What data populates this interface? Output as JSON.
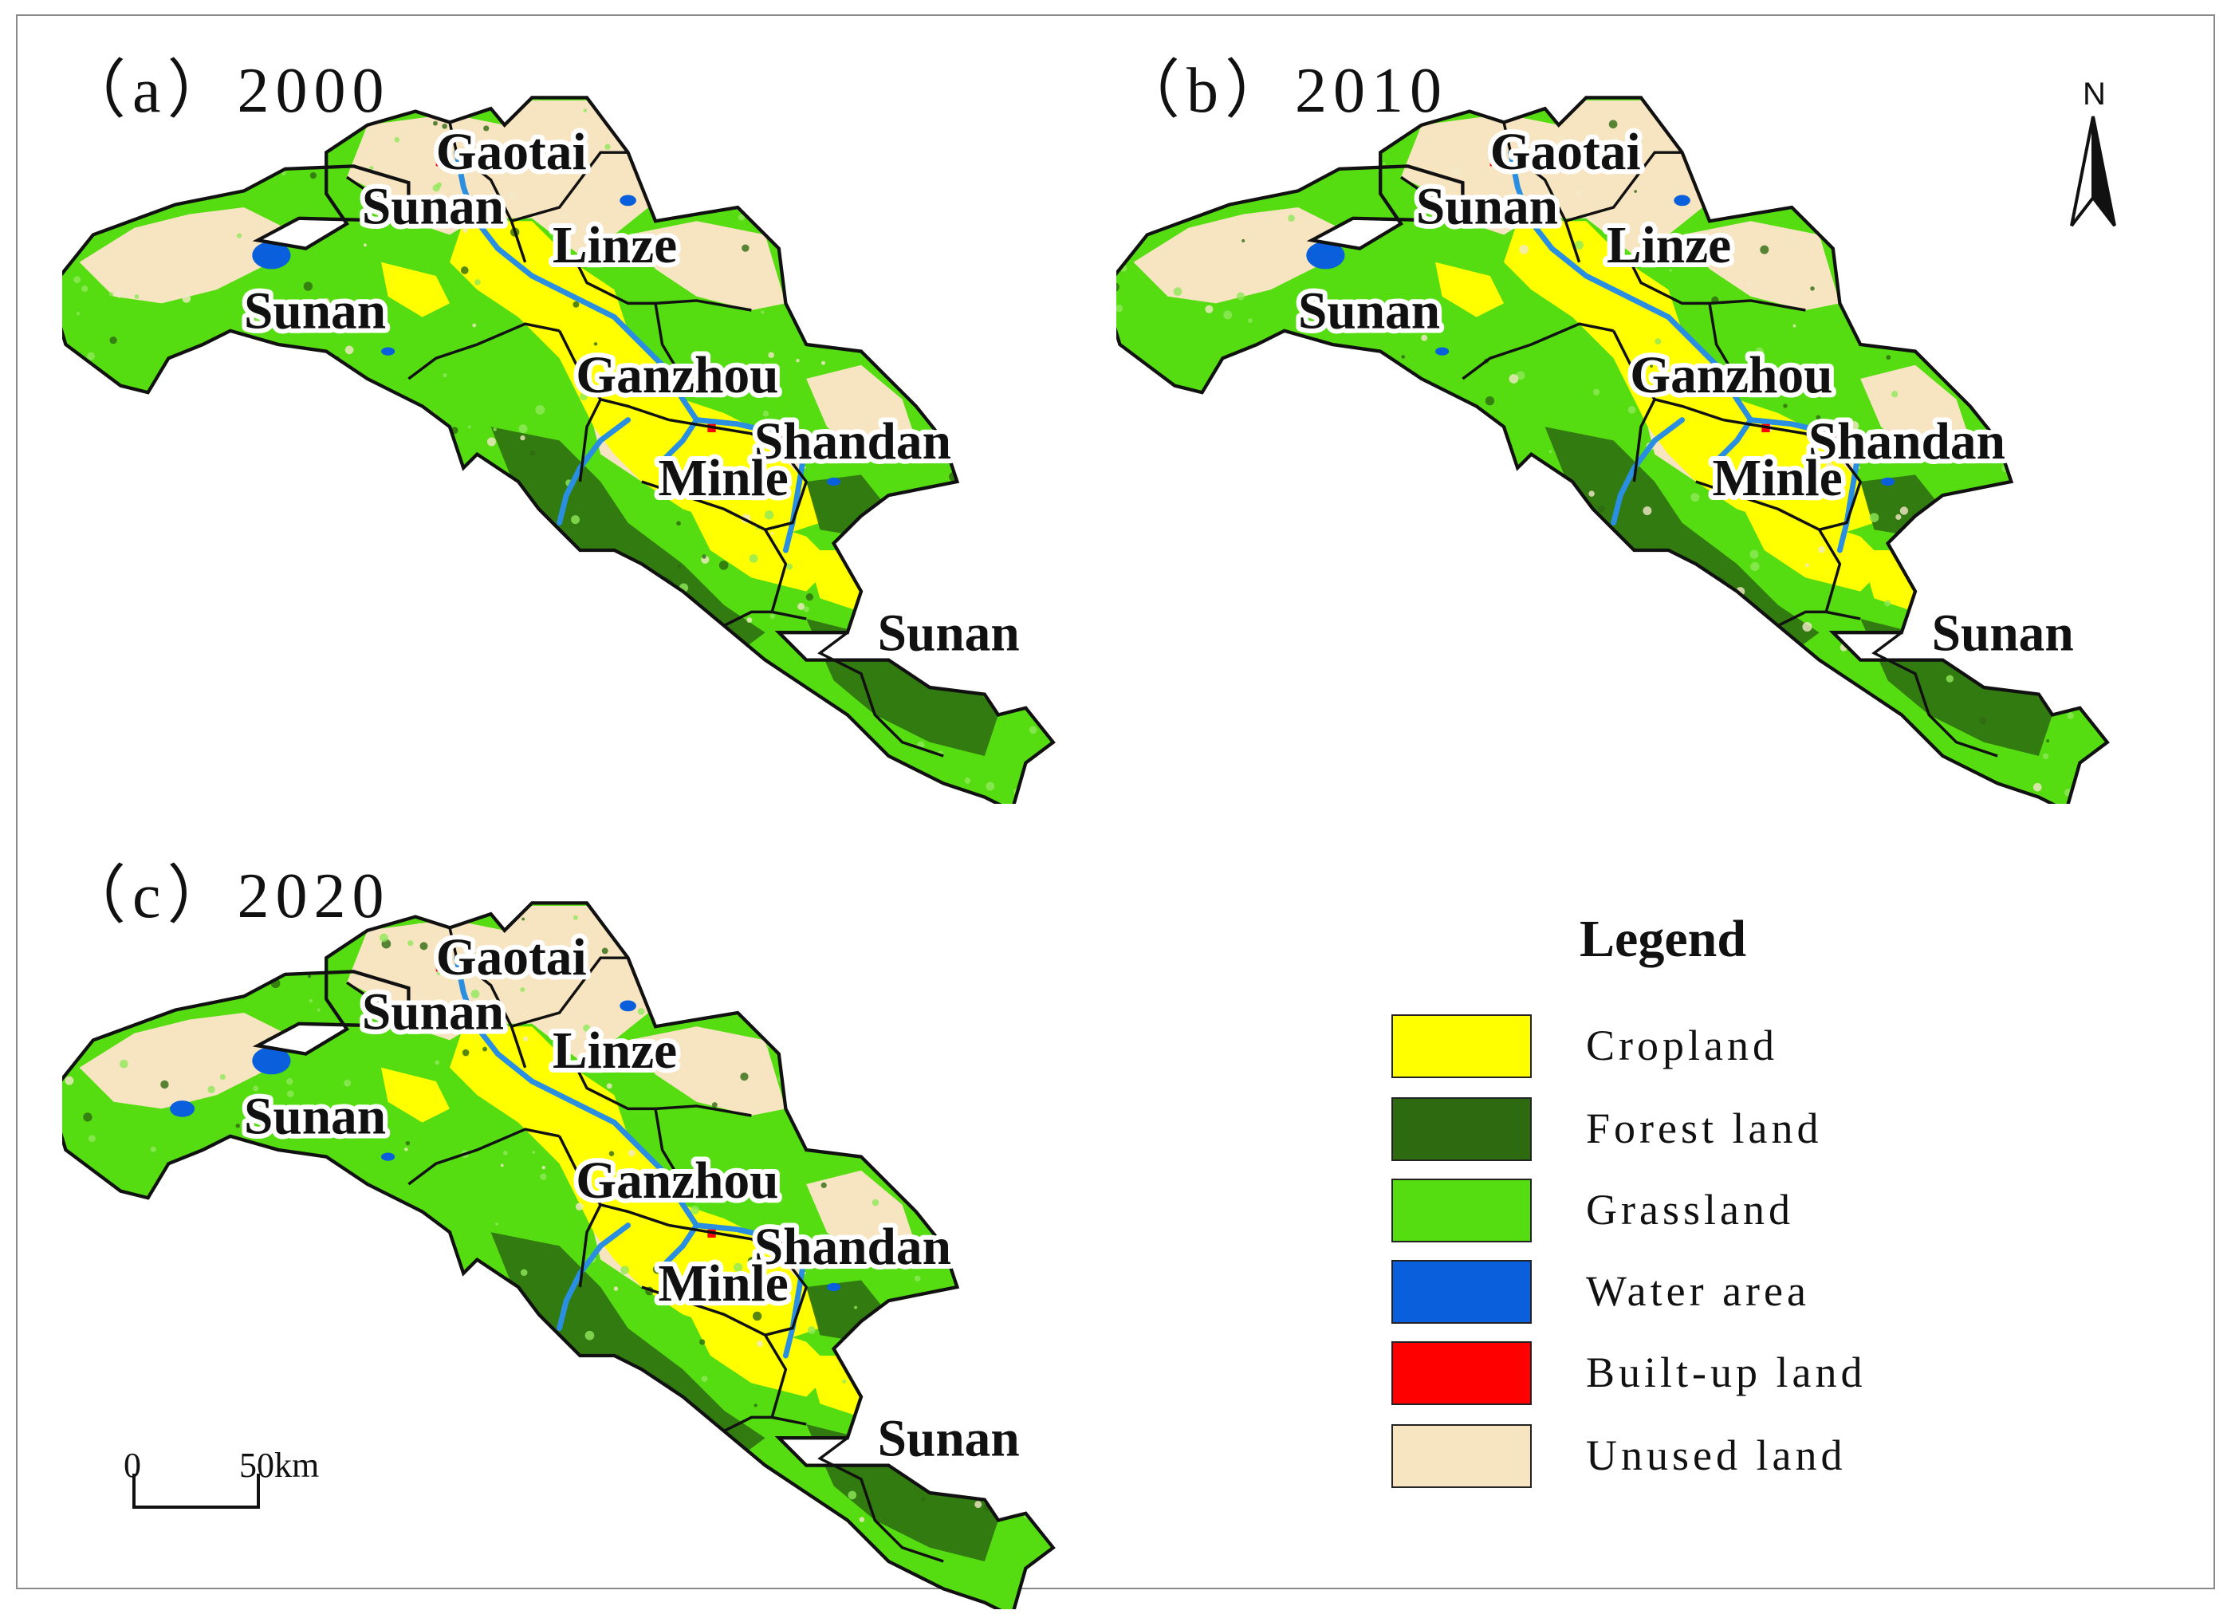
{
  "panels": [
    {
      "id": "a",
      "title": "（a）2000",
      "water_spots": 1
    },
    {
      "id": "b",
      "title": "（b）2010",
      "water_spots": 2
    },
    {
      "id": "c",
      "title": "（c）2020",
      "water_spots": 3
    }
  ],
  "place_labels": {
    "gaotai": "Gaotai",
    "sunan_north": "Sunan",
    "linze": "Linze",
    "sunan_west": "Sunan",
    "ganzhou": "Ganzhou",
    "shandan": "Shandan",
    "minle": "Minle",
    "sunan_east": "Sunan"
  },
  "north_arrow": {
    "label": "N"
  },
  "scale_bar": {
    "zero": "0",
    "distance": "50km"
  },
  "legend": {
    "title": "Legend",
    "items": [
      {
        "label": "Cropland",
        "color": "#ffff00"
      },
      {
        "label": "Forest land",
        "color": "#2d6a10"
      },
      {
        "label": "Grassland",
        "color": "#55dd11"
      },
      {
        "label": "Water area",
        "color": "#0a5fdc"
      },
      {
        "label": "Built-up land",
        "color": "#ff0000"
      },
      {
        "label": "Unused land",
        "color": "#f7e4c0"
      }
    ]
  },
  "colors": {
    "cropland": "#ffff00",
    "forest": "#2d6a10",
    "grassland": "#55dd11",
    "water": "#0a5fdc",
    "river": "#2a8fe0",
    "builtup": "#ff0000",
    "unused": "#f7e4c0",
    "boundary": "#111111"
  }
}
